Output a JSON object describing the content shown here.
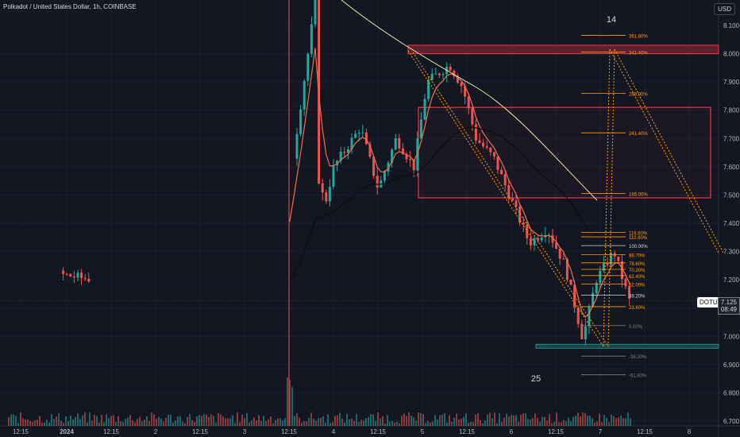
{
  "legend": {
    "text": "Polkadot / United States Dollar, 1h, COINBASE"
  },
  "currency_button": "USD",
  "symbol_tag": "DOTUSD",
  "last_price": {
    "value": "7.125",
    "countdown": "08:49"
  },
  "wave_labels": [
    "14",
    "25"
  ],
  "colors": {
    "background": "#131722",
    "up": "#26a69a",
    "down": "#ef5350",
    "ema_fast": "#e8704e",
    "ema_slow": "#f0e4a8",
    "sma_dark": "#0b0e14",
    "zone": "#f23645",
    "fib": "#ff9800"
  },
  "chart_data": {
    "type": "candlestick",
    "y_axis": {
      "ticks": [
        "8.100",
        "8.000",
        "7.900",
        "7.800",
        "7.700",
        "7.600",
        "7.500",
        "7.400",
        "7.300",
        "7.200",
        "7.100",
        "7.000",
        "6.900",
        "6.800",
        "6.700"
      ],
      "ylim": [
        6.68,
        8.13
      ]
    },
    "x_axis": {
      "ticks": [
        "12:15",
        "2024",
        "12:15",
        "2",
        "12:15",
        "3",
        "12:15",
        "4",
        "12:15",
        "5",
        "12:15",
        "6",
        "12:15",
        "7",
        "12:15",
        "8"
      ]
    },
    "price_path": [
      [
        0.0,
        7.25
      ],
      [
        3.0,
        7.1
      ],
      [
        3.5,
        8.2
      ],
      [
        3.55,
        7.4
      ],
      [
        3.7,
        7.6
      ],
      [
        4.0,
        7.74
      ],
      [
        4.2,
        7.52
      ],
      [
        4.4,
        7.7
      ],
      [
        4.6,
        7.6
      ],
      [
        4.75,
        7.9
      ],
      [
        5.0,
        7.96
      ],
      [
        5.15,
        7.88
      ],
      [
        5.3,
        7.7
      ],
      [
        5.5,
        7.63
      ],
      [
        5.7,
        7.48
      ],
      [
        5.9,
        7.33
      ],
      [
        6.1,
        7.38
      ],
      [
        6.3,
        7.25
      ],
      [
        6.5,
        6.99
      ],
      [
        6.65,
        7.2
      ],
      [
        6.85,
        7.3
      ],
      [
        7.05,
        7.1
      ]
    ],
    "fibonacci": [
      {
        "label": "361.80%",
        "price": 8.065
      },
      {
        "label": "341.40%",
        "price": 8.006
      },
      {
        "label": "289.00%",
        "price": 7.86
      },
      {
        "label": "241.40%",
        "price": 7.72
      },
      {
        "label": "165.00%",
        "price": 7.505
      },
      {
        "label": "116.60%",
        "price": 7.368
      },
      {
        "label": "110.80%",
        "price": 7.352
      },
      {
        "label": "100.00%",
        "price": 7.321
      },
      {
        "label": "88.70%",
        "price": 7.289
      },
      {
        "label": "78.60%",
        "price": 7.26
      },
      {
        "label": "70.20%",
        "price": 7.237
      },
      {
        "label": "62.40%",
        "price": 7.215
      },
      {
        "label": "52.00%",
        "price": 7.185
      },
      {
        "label": "38.20%",
        "price": 7.146
      },
      {
        "label": "23.60%",
        "price": 7.105
      },
      {
        "label": "0.00%",
        "price": 7.038
      },
      {
        "label": "-38.20%",
        "price": 6.93
      },
      {
        "label": "-61.80%",
        "price": 6.864
      }
    ],
    "resistance_zone": {
      "top": 7.81,
      "bottom": 7.49
    },
    "top_band": {
      "top": 8.03,
      "bottom": 8.0
    },
    "support_band": {
      "top": 6.972,
      "bottom": 6.958
    }
  }
}
